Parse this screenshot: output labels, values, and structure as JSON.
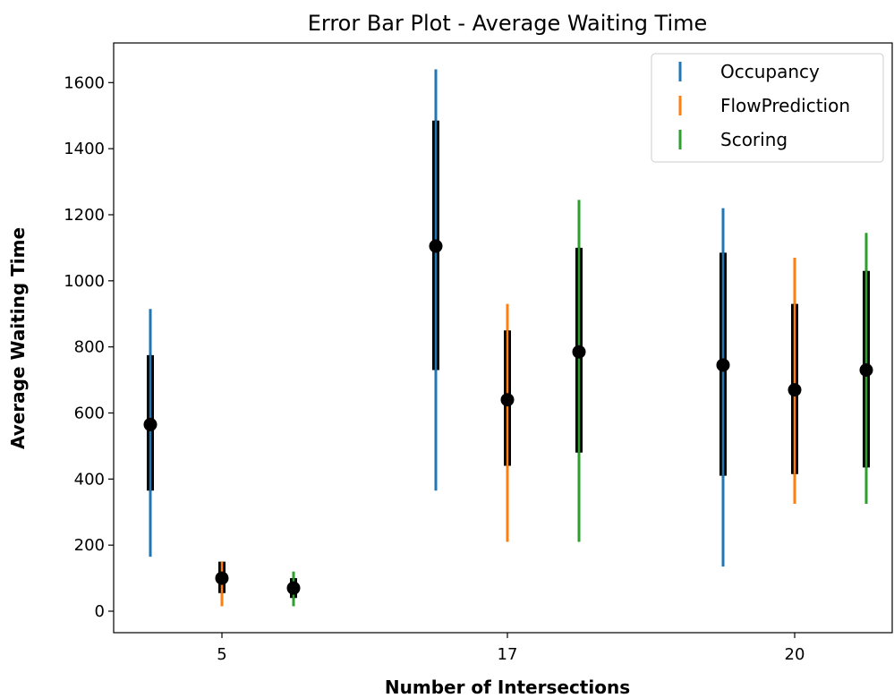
{
  "chart_data": {
    "type": "errorbar",
    "title": "Error Bar Plot - Average Waiting Time",
    "xlabel": "Number of Intersections",
    "ylabel": "Average Waiting Time",
    "categories": [
      "5",
      "17",
      "20"
    ],
    "ylim": [
      -65,
      1720
    ],
    "yticks": [
      0,
      200,
      400,
      600,
      800,
      1000,
      1200,
      1400,
      1600
    ],
    "grid": false,
    "legend_position": "top-right",
    "series": [
      {
        "name": "Occupancy",
        "color": "#1f77b4",
        "points": [
          {
            "category": "5",
            "mean": 565,
            "inner": [
              365,
              775
            ],
            "outer": [
              165,
              915
            ]
          },
          {
            "category": "17",
            "mean": 1105,
            "inner": [
              730,
              1485
            ],
            "outer": [
              365,
              1640
            ]
          },
          {
            "category": "20",
            "mean": 745,
            "inner": [
              410,
              1085
            ],
            "outer": [
              135,
              1220
            ]
          }
        ]
      },
      {
        "name": "FlowPrediction",
        "color": "#ff7f0e",
        "points": [
          {
            "category": "5",
            "mean": 100,
            "inner": [
              55,
              150
            ],
            "outer": [
              15,
              150
            ]
          },
          {
            "category": "17",
            "mean": 640,
            "inner": [
              440,
              850
            ],
            "outer": [
              210,
              930
            ]
          },
          {
            "category": "20",
            "mean": 670,
            "inner": [
              415,
              930
            ],
            "outer": [
              325,
              1070
            ]
          }
        ]
      },
      {
        "name": "Scoring",
        "color": "#2ca02c",
        "points": [
          {
            "category": "5",
            "mean": 70,
            "inner": [
              40,
              100
            ],
            "outer": [
              15,
              120
            ]
          },
          {
            "category": "17",
            "mean": 785,
            "inner": [
              480,
              1100
            ],
            "outer": [
              210,
              1245
            ]
          },
          {
            "category": "20",
            "mean": 730,
            "inner": [
              435,
              1030
            ],
            "outer": [
              325,
              1145
            ]
          }
        ]
      }
    ]
  }
}
